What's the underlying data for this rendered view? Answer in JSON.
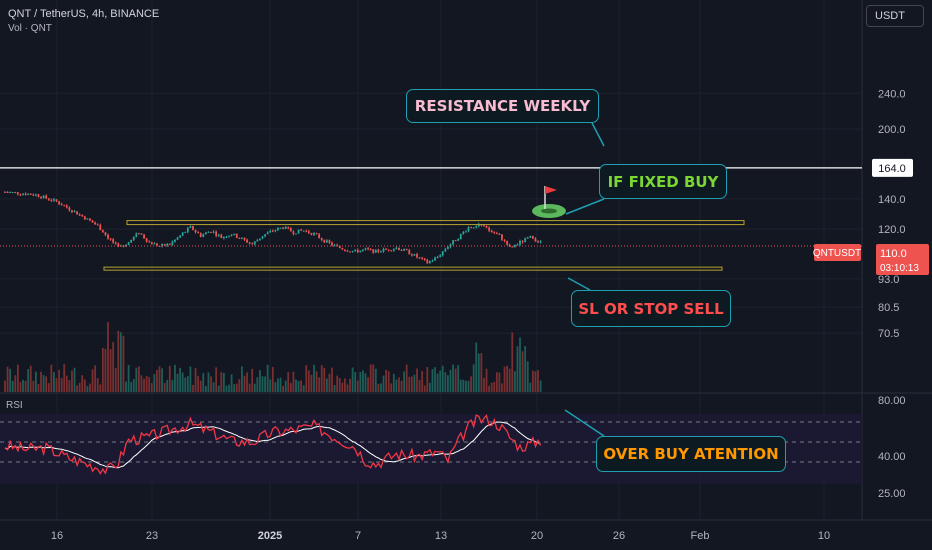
{
  "header": {
    "symbol_line": "QNT / TetherUS, 4h, BINANCE",
    "volume_line": "Vol · QNT",
    "currency": "USDT",
    "rsi_label": "RSI"
  },
  "annotations": {
    "resistance": "RESISTANCE WEEKLY",
    "if_fixed_buy": "IF FIXED BUY",
    "stop_sell": "SL OR STOP SELL",
    "over_buy": "OVER BUY ATENTION"
  },
  "price_badges": {
    "line_price": "164.0",
    "ticker": "QNTUSDT",
    "last_price": "110.0",
    "countdown": "03:10:13"
  },
  "colors": {
    "background": "#131722",
    "up": "#26a69a",
    "down": "#ef5350",
    "channel": "#b7a22f",
    "resistance_line": "#ffffff",
    "callout_border": "#1e9fb2",
    "rsi_line": "#f23645",
    "rsi_ma": "#ffffff",
    "resistance_text": "#f8bbd0",
    "buy_text": "#7cd633",
    "sell_text": "#ff4d4d",
    "overbuy_text": "#ff9800"
  },
  "chart_data": [
    {
      "type": "candlestick",
      "title": "QNT / TetherUS, 4h, BINANCE",
      "x_ticks": [
        "16",
        "23",
        "2025",
        "7",
        "13",
        "20",
        "26",
        "Feb",
        "10"
      ],
      "y_ticks": [
        "240.0",
        "200.0",
        "140.0",
        "120.0",
        "93.0",
        "80.5",
        "70.5"
      ],
      "y_scale": "log",
      "price_path": [
        [
          0,
          145
        ],
        [
          3,
          143
        ],
        [
          5,
          138
        ],
        [
          7,
          130
        ],
        [
          9,
          122
        ],
        [
          10,
          115
        ],
        [
          11,
          109
        ],
        [
          12,
          112
        ],
        [
          13,
          118
        ],
        [
          14,
          112
        ],
        [
          15,
          110
        ],
        [
          16,
          111
        ],
        [
          17,
          116
        ],
        [
          18,
          121
        ],
        [
          19,
          116
        ],
        [
          20,
          119
        ],
        [
          21,
          115
        ],
        [
          22,
          117
        ],
        [
          23,
          114
        ],
        [
          24,
          111
        ],
        [
          25,
          116
        ],
        [
          26,
          119
        ],
        [
          27,
          121
        ],
        [
          28,
          118
        ],
        [
          29,
          119
        ],
        [
          30,
          117
        ],
        [
          31,
          113
        ],
        [
          32,
          110
        ],
        [
          33,
          108
        ],
        [
          34,
          107
        ],
        [
          35,
          108
        ],
        [
          36,
          107
        ],
        [
          37,
          108
        ],
        [
          38,
          109
        ],
        [
          39,
          107
        ],
        [
          40,
          104
        ],
        [
          41,
          101
        ],
        [
          42,
          104
        ],
        [
          43,
          110
        ],
        [
          44,
          115
        ],
        [
          45,
          121
        ],
        [
          46,
          123
        ],
        [
          47,
          119
        ],
        [
          48,
          116
        ],
        [
          49,
          109
        ],
        [
          50,
          112
        ],
        [
          51,
          115
        ],
        [
          52,
          112
        ]
      ],
      "last_price": 110.0,
      "horizontal_lines": [
        {
          "price": 164.0,
          "label": "RESISTANCE WEEKLY"
        },
        {
          "price": 124.0,
          "label": "channel top"
        },
        {
          "price": 98.0,
          "label": "channel bottom"
        }
      ],
      "volume": "bars beneath price, spikes near x=10 and x=50"
    },
    {
      "type": "line",
      "title": "RSI",
      "y_ticks": [
        "80.00",
        "40.00",
        "25.00"
      ],
      "bands": [
        70,
        50,
        30
      ],
      "rsi_path": [
        [
          0,
          46
        ],
        [
          2,
          43
        ],
        [
          4,
          44
        ],
        [
          6,
          35
        ],
        [
          8,
          28
        ],
        [
          10,
          22
        ],
        [
          11,
          30
        ],
        [
          12,
          52
        ],
        [
          14,
          55
        ],
        [
          16,
          62
        ],
        [
          18,
          68
        ],
        [
          20,
          60
        ],
        [
          22,
          51
        ],
        [
          24,
          50
        ],
        [
          26,
          60
        ],
        [
          28,
          62
        ],
        [
          30,
          66
        ],
        [
          32,
          55
        ],
        [
          34,
          45
        ],
        [
          35,
          32
        ],
        [
          36,
          28
        ],
        [
          38,
          38
        ],
        [
          40,
          36
        ],
        [
          42,
          40
        ],
        [
          43,
          32
        ],
        [
          44,
          50
        ],
        [
          45,
          65
        ],
        [
          46,
          73
        ],
        [
          47,
          72
        ],
        [
          48,
          67
        ],
        [
          49,
          55
        ],
        [
          50,
          45
        ],
        [
          51,
          48
        ],
        [
          52,
          52
        ]
      ],
      "line_color": "#f23645",
      "ma_color": "#ffffff"
    }
  ]
}
